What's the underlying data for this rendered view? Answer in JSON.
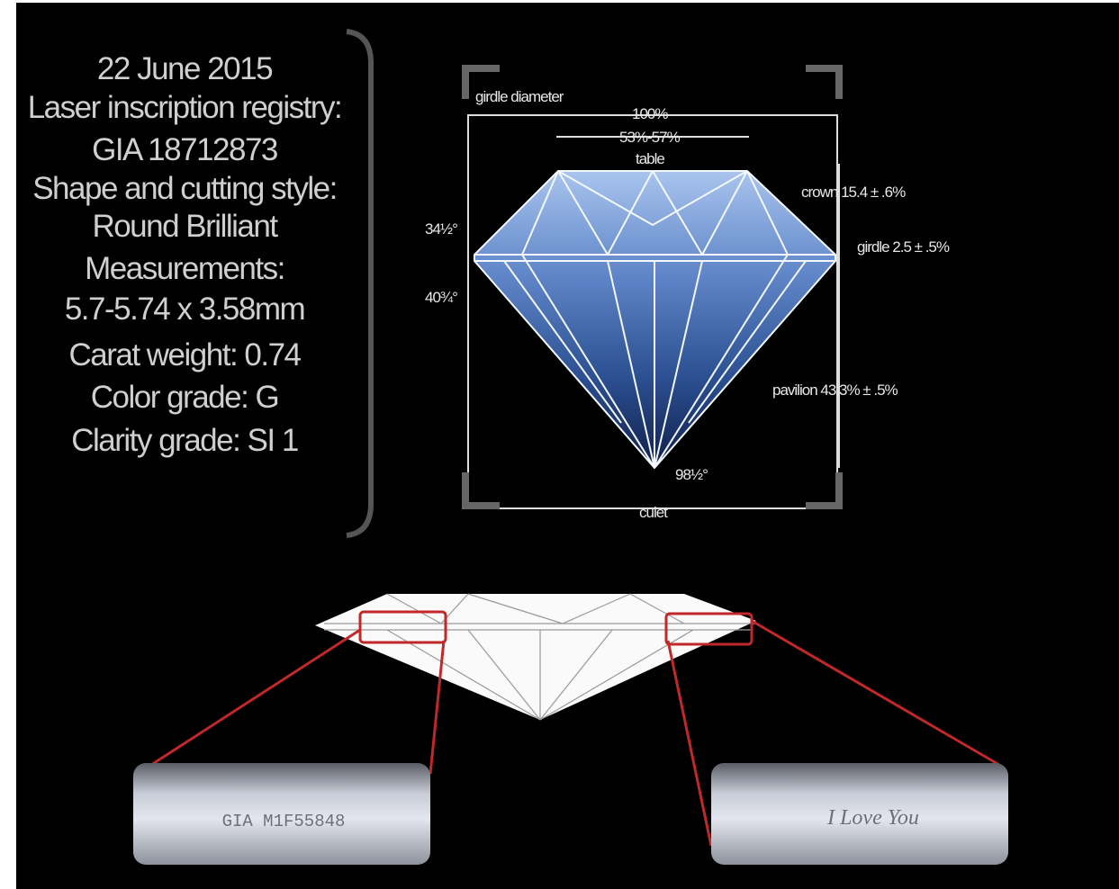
{
  "info_panel": {
    "lines": [
      "22 June 2015",
      "Laser inscription registry:",
      "GIA 18712873",
      "Shape and cutting style:",
      "Round Brilliant",
      "Measurements:",
      "5.7-5.74 x 3.58mm",
      "Carat weight: 0.74",
      "Color grade: G",
      "Clarity grade: SI 1"
    ]
  },
  "diagram": {
    "girdle_diameter": "girdle diameter",
    "diameter_percent": "100%",
    "table_percent": "53%-57%",
    "table": "table",
    "crown": "crown 15.4 ± .6%",
    "girdle": "girdle 2.5 ± .5%",
    "pavilion": "pavilion 43.3% ± .5%",
    "crown_angle": "34½°",
    "pavilion_angle": "40¾°",
    "culet_angle": "98½°",
    "culet": "culet"
  },
  "inscriptions": [
    "GIA M1F55848",
    "I Love You"
  ]
}
